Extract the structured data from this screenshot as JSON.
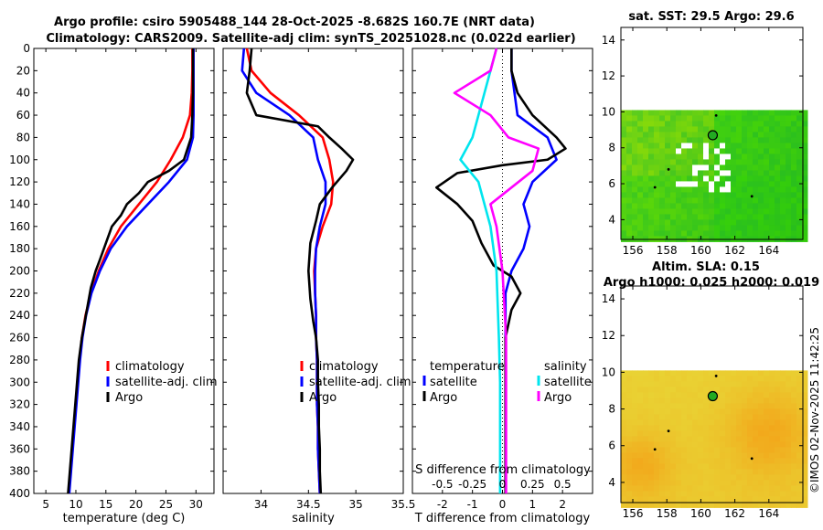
{
  "titles": {
    "line1": "Argo profile: csiro 5905488_144 28-Oct-2025 -8.682S 160.7E (NRT data)",
    "line2": "Climatology: CARS2009. Satellite-adj clim: synTS_20251028.nc (0.022d earlier)"
  },
  "chart_data": [
    {
      "type": "line",
      "id": "temperature",
      "xlabel": "temperature (deg C)",
      "ylabel": "",
      "xlim": [
        3,
        33
      ],
      "ylim": [
        400,
        0
      ],
      "xticks": [
        "5",
        "10",
        "15",
        "20",
        "25",
        "30"
      ],
      "yticks": [
        "0",
        "20",
        "40",
        "60",
        "80",
        "100",
        "120",
        "140",
        "160",
        "180",
        "200",
        "220",
        "240",
        "260",
        "280",
        "300",
        "320",
        "340",
        "360",
        "380",
        "400"
      ],
      "legend": [
        "climatology",
        "satellite-adj. clim",
        "Argo"
      ],
      "series": [
        {
          "name": "climatology",
          "color": "#ff0000",
          "points": [
            [
              29.4,
              0
            ],
            [
              29.4,
              20
            ],
            [
              29.3,
              40
            ],
            [
              29.0,
              60
            ],
            [
              27.8,
              80
            ],
            [
              25.8,
              100
            ],
            [
              23.5,
              120
            ],
            [
              20.5,
              140
            ],
            [
              17.5,
              160
            ],
            [
              15.4,
              180
            ],
            [
              13.8,
              200
            ],
            [
              12.5,
              220
            ],
            [
              11.6,
              240
            ],
            [
              11.0,
              260
            ],
            [
              10.6,
              280
            ],
            [
              10.3,
              300
            ],
            [
              10.0,
              320
            ],
            [
              9.7,
              340
            ],
            [
              9.4,
              360
            ],
            [
              9.1,
              380
            ],
            [
              8.8,
              400
            ]
          ]
        },
        {
          "name": "satellite-adj. clim",
          "color": "#0000ff",
          "points": [
            [
              29.6,
              0
            ],
            [
              29.6,
              20
            ],
            [
              29.6,
              40
            ],
            [
              29.6,
              60
            ],
            [
              29.5,
              80
            ],
            [
              28.5,
              100
            ],
            [
              25.5,
              120
            ],
            [
              22.0,
              140
            ],
            [
              18.5,
              160
            ],
            [
              15.8,
              180
            ],
            [
              14.0,
              200
            ],
            [
              12.6,
              220
            ],
            [
              11.7,
              240
            ],
            [
              11.1,
              260
            ],
            [
              10.7,
              280
            ],
            [
              10.4,
              300
            ],
            [
              10.1,
              320
            ],
            [
              9.8,
              340
            ],
            [
              9.5,
              360
            ],
            [
              9.2,
              380
            ],
            [
              8.9,
              400
            ]
          ]
        },
        {
          "name": "Argo",
          "color": "#000000",
          "points": [
            [
              29.5,
              0
            ],
            [
              29.5,
              20
            ],
            [
              29.5,
              40
            ],
            [
              29.4,
              60
            ],
            [
              29.2,
              80
            ],
            [
              28.0,
              100
            ],
            [
              25.5,
              110
            ],
            [
              22.0,
              120
            ],
            [
              20.5,
              130
            ],
            [
              18.5,
              140
            ],
            [
              17.5,
              150
            ],
            [
              16.0,
              160
            ],
            [
              15.0,
              175
            ],
            [
              14.0,
              190
            ],
            [
              13.3,
              200
            ],
            [
              12.5,
              215
            ],
            [
              12.0,
              230
            ],
            [
              11.5,
              245
            ],
            [
              11.0,
              260
            ],
            [
              10.5,
              280
            ],
            [
              10.2,
              300
            ],
            [
              9.9,
              320
            ],
            [
              9.6,
              340
            ],
            [
              9.3,
              360
            ],
            [
              9.0,
              380
            ],
            [
              8.7,
              400
            ]
          ]
        }
      ]
    },
    {
      "type": "line",
      "id": "salinity",
      "xlabel": "salinity",
      "ylabel": "",
      "xlim": [
        33.6,
        35.5
      ],
      "ylim": [
        400,
        0
      ],
      "xticks": [
        "34",
        "34.5",
        "35",
        "35.5"
      ],
      "legend": [
        "climatology",
        "satellite-adj. clim",
        "Argo"
      ],
      "series": [
        {
          "name": "climatology",
          "color": "#ff0000",
          "points": [
            [
              33.85,
              0
            ],
            [
              33.9,
              20
            ],
            [
              34.1,
              40
            ],
            [
              34.4,
              60
            ],
            [
              34.65,
              80
            ],
            [
              34.72,
              100
            ],
            [
              34.76,
              120
            ],
            [
              34.74,
              140
            ],
            [
              34.65,
              160
            ],
            [
              34.58,
              180
            ],
            [
              34.56,
              200
            ],
            [
              34.57,
              220
            ],
            [
              34.58,
              240
            ],
            [
              34.58,
              260
            ],
            [
              34.59,
              280
            ],
            [
              34.59,
              300
            ],
            [
              34.59,
              320
            ],
            [
              34.6,
              340
            ],
            [
              34.6,
              360
            ],
            [
              34.61,
              380
            ],
            [
              34.62,
              400
            ]
          ]
        },
        {
          "name": "satellite-adj. clim",
          "color": "#0000ff",
          "points": [
            [
              33.82,
              0
            ],
            [
              33.8,
              20
            ],
            [
              33.95,
              40
            ],
            [
              34.3,
              60
            ],
            [
              34.55,
              80
            ],
            [
              34.6,
              100
            ],
            [
              34.68,
              120
            ],
            [
              34.68,
              140
            ],
            [
              34.62,
              160
            ],
            [
              34.58,
              180
            ],
            [
              34.57,
              200
            ],
            [
              34.57,
              220
            ],
            [
              34.58,
              240
            ],
            [
              34.58,
              260
            ],
            [
              34.59,
              280
            ],
            [
              34.59,
              300
            ],
            [
              34.59,
              320
            ],
            [
              34.6,
              340
            ],
            [
              34.6,
              360
            ],
            [
              34.61,
              380
            ],
            [
              34.62,
              400
            ]
          ]
        },
        {
          "name": "Argo",
          "color": "#000000",
          "points": [
            [
              33.9,
              0
            ],
            [
              33.88,
              20
            ],
            [
              33.85,
              40
            ],
            [
              33.95,
              60
            ],
            [
              34.6,
              70
            ],
            [
              34.72,
              80
            ],
            [
              34.85,
              90
            ],
            [
              34.97,
              100
            ],
            [
              34.9,
              110
            ],
            [
              34.75,
              125
            ],
            [
              34.62,
              140
            ],
            [
              34.58,
              155
            ],
            [
              34.52,
              175
            ],
            [
              34.5,
              200
            ],
            [
              34.52,
              225
            ],
            [
              34.55,
              245
            ],
            [
              34.58,
              260
            ],
            [
              34.6,
              280
            ],
            [
              34.6,
              300
            ],
            [
              34.61,
              320
            ],
            [
              34.61,
              340
            ],
            [
              34.62,
              360
            ],
            [
              34.62,
              380
            ],
            [
              34.63,
              400
            ]
          ]
        }
      ]
    },
    {
      "type": "line",
      "id": "difference",
      "xlabel": "T difference from climatology",
      "xlabel2": "S difference from climatology",
      "ylabel": "",
      "xlim": [
        -3,
        3
      ],
      "ylim": [
        400,
        0
      ],
      "xticks": [
        "-2",
        "-1",
        "0",
        "1",
        "2"
      ],
      "xticks_s": [
        "-0.5",
        "-0.25",
        "0",
        "0.25",
        "0.5"
      ],
      "legend_temperature": {
        "title": "temperature",
        "items": [
          "satellite",
          "Argo"
        ]
      },
      "legend_salinity": {
        "title": "salinity",
        "items": [
          "satellite",
          "Argo"
        ]
      },
      "series": [
        {
          "name": "T satellite",
          "color": "#0000ff",
          "points": [
            [
              0.3,
              0
            ],
            [
              0.3,
              20
            ],
            [
              0.4,
              40
            ],
            [
              0.5,
              60
            ],
            [
              1.5,
              80
            ],
            [
              1.8,
              100
            ],
            [
              1.0,
              120
            ],
            [
              0.7,
              140
            ],
            [
              0.9,
              160
            ],
            [
              0.7,
              180
            ],
            [
              0.3,
              200
            ],
            [
              0.1,
              220
            ],
            [
              0.1,
              240
            ],
            [
              0.1,
              260
            ],
            [
              0.1,
              300
            ],
            [
              0.1,
              340
            ],
            [
              0.1,
              380
            ],
            [
              0.1,
              400
            ]
          ]
        },
        {
          "name": "T Argo",
          "color": "#000000",
          "points": [
            [
              0.3,
              0
            ],
            [
              0.3,
              20
            ],
            [
              0.5,
              40
            ],
            [
              1.0,
              60
            ],
            [
              1.8,
              80
            ],
            [
              2.1,
              90
            ],
            [
              1.5,
              100
            ],
            [
              0.0,
              105
            ],
            [
              -1.5,
              112
            ],
            [
              -2.2,
              125
            ],
            [
              -1.5,
              140
            ],
            [
              -1.0,
              155
            ],
            [
              -0.7,
              175
            ],
            [
              -0.3,
              195
            ],
            [
              0.3,
              205
            ],
            [
              0.6,
              220
            ],
            [
              0.3,
              235
            ],
            [
              0.1,
              260
            ],
            [
              0.1,
              300
            ],
            [
              0.1,
              340
            ],
            [
              0.1,
              380
            ],
            [
              0.1,
              400
            ]
          ]
        },
        {
          "name": "S satellite",
          "color": "#00e5ee",
          "points": [
            [
              -0.05,
              0
            ],
            [
              -0.1,
              20
            ],
            [
              -0.15,
              40
            ],
            [
              -0.25,
              80
            ],
            [
              -0.35,
              100
            ],
            [
              -0.2,
              120
            ],
            [
              -0.1,
              160
            ],
            [
              -0.05,
              200
            ],
            [
              -0.03,
              260
            ],
            [
              -0.02,
              300
            ],
            [
              -0.02,
              400
            ]
          ]
        },
        {
          "name": "S Argo",
          "color": "#ff00ff",
          "points": [
            [
              -0.05,
              0
            ],
            [
              -0.1,
              20
            ],
            [
              -0.4,
              40
            ],
            [
              -0.1,
              60
            ],
            [
              0.05,
              80
            ],
            [
              0.3,
              90
            ],
            [
              0.25,
              110
            ],
            [
              -0.1,
              140
            ],
            [
              -0.05,
              160
            ],
            [
              0.0,
              200
            ],
            [
              0.03,
              260
            ],
            [
              0.03,
              400
            ]
          ]
        }
      ]
    },
    {
      "type": "heatmap",
      "id": "sst-map",
      "title": "sat. SST: 29.5 Argo: 29.6",
      "xticks": [
        "156",
        "158",
        "160",
        "162",
        "164"
      ],
      "yticks": [
        "4",
        "6",
        "8",
        "10",
        "12",
        "14"
      ],
      "xlim": [
        155.3,
        166.0
      ],
      "ylim": [
        2.9,
        14.7
      ],
      "data_ylim": [
        2.9,
        10.1
      ],
      "marker": [
        160.7,
        8.7
      ]
    },
    {
      "type": "heatmap",
      "id": "sla-map",
      "title": "Altim. SLA: 0.15",
      "subtitle": "Argo h1000: 0.025 h2000: 0.019",
      "xticks": [
        "156",
        "158",
        "160",
        "162",
        "164"
      ],
      "yticks": [
        "4",
        "6",
        "8",
        "10",
        "12",
        "14"
      ],
      "xlim": [
        155.3,
        166.0
      ],
      "ylim": [
        2.9,
        14.7
      ],
      "data_ylim": [
        2.9,
        10.1
      ],
      "marker": [
        160.7,
        8.7
      ]
    }
  ],
  "watermark": "©IMOS 02-Nov-2025 11:42:25"
}
